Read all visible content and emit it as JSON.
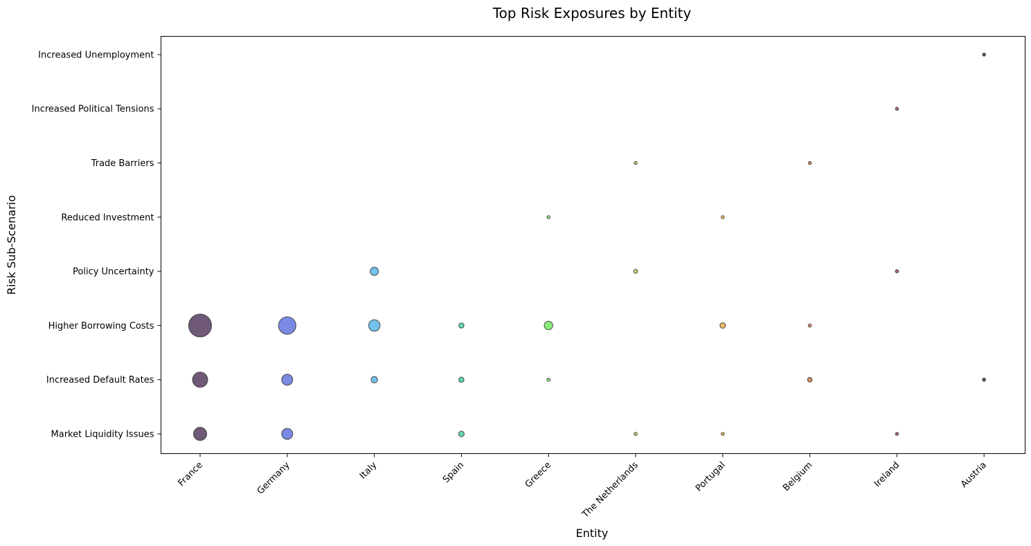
{
  "chart_data": {
    "type": "scatter",
    "title": "Top Risk Exposures by Entity",
    "xlabel": "Entity",
    "ylabel": "Risk Sub-Scenario",
    "x_categories": [
      "France",
      "Germany",
      "Italy",
      "Spain",
      "Greece",
      "The Netherlands",
      "Portugal",
      "Belgium",
      "Ireland",
      "Austria"
    ],
    "y_categories": [
      "Market Liquidity Issues",
      "Increased Default Rates",
      "Higher Borrowing Costs",
      "Policy Uncertainty",
      "Reduced Investment",
      "Trade Barriers",
      "Increased Political Tensions",
      "Increased Unemployment"
    ],
    "grid": false,
    "legend": "none",
    "entity_colors": {
      "France": "#4b2f54",
      "Germany": "#5a6ddc",
      "Italy": "#4fb3e8",
      "Spain": "#3fd0a0",
      "Greece": "#6ee85a",
      "The Netherlands": "#a8d050",
      "Portugal": "#e8a840",
      "Belgium": "#d07040",
      "Ireland": "#a04040",
      "Austria": "#3a2a2a"
    },
    "points": [
      {
        "entity": "France",
        "scenario": "Higher Borrowing Costs",
        "exposure": 100
      },
      {
        "entity": "France",
        "scenario": "Increased Default Rates",
        "exposure": 44
      },
      {
        "entity": "France",
        "scenario": "Market Liquidity Issues",
        "exposure": 33
      },
      {
        "entity": "Germany",
        "scenario": "Higher Borrowing Costs",
        "exposure": 58
      },
      {
        "entity": "Germany",
        "scenario": "Increased Default Rates",
        "exposure": 23
      },
      {
        "entity": "Germany",
        "scenario": "Market Liquidity Issues",
        "exposure": 23
      },
      {
        "entity": "Italy",
        "scenario": "Policy Uncertainty",
        "exposure": 13
      },
      {
        "entity": "Italy",
        "scenario": "Higher Borrowing Costs",
        "exposure": 25
      },
      {
        "entity": "Italy",
        "scenario": "Increased Default Rates",
        "exposure": 8
      },
      {
        "entity": "Spain",
        "scenario": "Higher Borrowing Costs",
        "exposure": 5
      },
      {
        "entity": "Spain",
        "scenario": "Increased Default Rates",
        "exposure": 5
      },
      {
        "entity": "Spain",
        "scenario": "Market Liquidity Issues",
        "exposure": 6
      },
      {
        "entity": "Greece",
        "scenario": "Reduced Investment",
        "exposure": 1
      },
      {
        "entity": "Greece",
        "scenario": "Higher Borrowing Costs",
        "exposure": 14
      },
      {
        "entity": "Greece",
        "scenario": "Increased Default Rates",
        "exposure": 2
      },
      {
        "entity": "The Netherlands",
        "scenario": "Trade Barriers",
        "exposure": 1
      },
      {
        "entity": "The Netherlands",
        "scenario": "Policy Uncertainty",
        "exposure": 3
      },
      {
        "entity": "The Netherlands",
        "scenario": "Market Liquidity Issues",
        "exposure": 2
      },
      {
        "entity": "Portugal",
        "scenario": "Reduced Investment",
        "exposure": 1
      },
      {
        "entity": "Portugal",
        "scenario": "Higher Borrowing Costs",
        "exposure": 6
      },
      {
        "entity": "Portugal",
        "scenario": "Market Liquidity Issues",
        "exposure": 1
      },
      {
        "entity": "Belgium",
        "scenario": "Trade Barriers",
        "exposure": 1
      },
      {
        "entity": "Belgium",
        "scenario": "Higher Borrowing Costs",
        "exposure": 2
      },
      {
        "entity": "Belgium",
        "scenario": "Increased Default Rates",
        "exposure": 4
      },
      {
        "entity": "Ireland",
        "scenario": "Increased Political Tensions",
        "exposure": 1
      },
      {
        "entity": "Ireland",
        "scenario": "Policy Uncertainty",
        "exposure": 2
      },
      {
        "entity": "Ireland",
        "scenario": "Market Liquidity Issues",
        "exposure": 1
      },
      {
        "entity": "Austria",
        "scenario": "Increased Unemployment",
        "exposure": 1
      },
      {
        "entity": "Austria",
        "scenario": "Increased Default Rates",
        "exposure": 2
      }
    ]
  }
}
